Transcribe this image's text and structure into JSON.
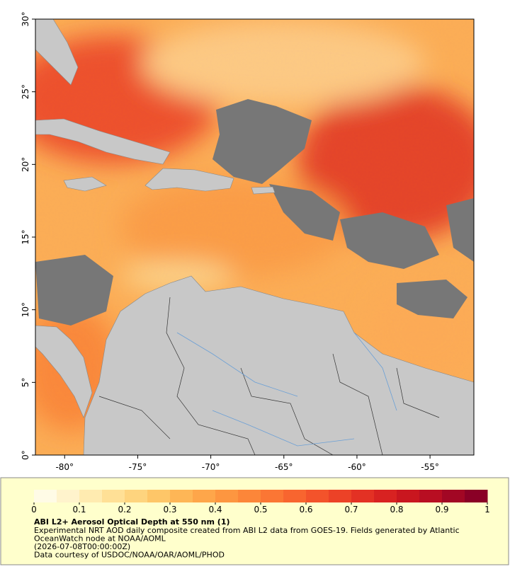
{
  "map": {
    "xlim": [
      -82,
      -52
    ],
    "ylim": [
      0,
      30
    ],
    "xticks": [
      {
        "value": -80,
        "label": "-80°"
      },
      {
        "value": -75,
        "label": "-75°"
      },
      {
        "value": -70,
        "label": "-70°"
      },
      {
        "value": -65,
        "label": "-65°"
      },
      {
        "value": -60,
        "label": "-60°"
      },
      {
        "value": -55,
        "label": "-55°"
      }
    ],
    "yticks": [
      {
        "value": 0,
        "label": "0°"
      },
      {
        "value": 5,
        "label": "5°"
      },
      {
        "value": 10,
        "label": "10°"
      },
      {
        "value": 15,
        "label": "15°"
      },
      {
        "value": 20,
        "label": "20°"
      },
      {
        "value": 25,
        "label": "25°"
      },
      {
        "value": 30,
        "label": "30°"
      }
    ]
  },
  "colorbar": {
    "lim": [
      0,
      1
    ],
    "ticks": [
      0,
      0.1,
      0.2,
      0.3,
      0.4,
      0.5,
      0.6,
      0.7,
      0.8,
      0.9,
      1
    ],
    "colors": [
      "#fffbe6",
      "#fff3cc",
      "#ffebb0",
      "#ffe096",
      "#fed47e",
      "#fec668",
      "#feb656",
      "#fea64a",
      "#fd9640",
      "#fc8639",
      "#fb7634",
      "#f8652f",
      "#f3532b",
      "#ec4227",
      "#e33124",
      "#d82221",
      "#c9161f",
      "#b80e22",
      "#a20724",
      "#8a0026"
    ]
  },
  "caption": {
    "title": "ABI L2+ Aerosol Optical Depth at 550 nm (1)",
    "lines": [
      "Experimental NRT AOD daily composite created from ABI L2 data from GOES-19. Fields generated by Atlantic",
      "OceanWatch node at NOAA/AOML",
      "(2026-07-08T00:00:00Z)",
      "Data courtesy of USDOC/NOAA/OAR/AOML/PHOD"
    ]
  }
}
